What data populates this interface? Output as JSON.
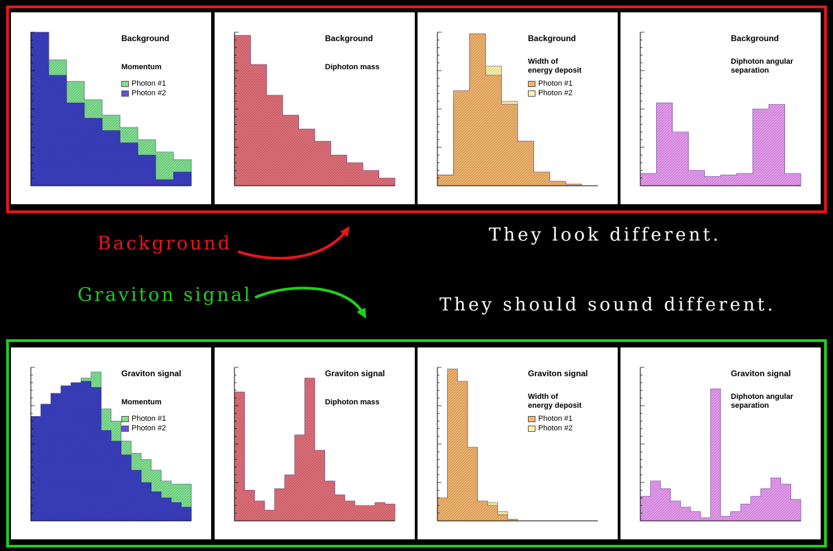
{
  "labels": {
    "background": "Background",
    "signal": "Graviton signal",
    "look_caption": "They look different.",
    "sound_caption": "They should sound different."
  },
  "colors": {
    "background_accent": "#e8141b",
    "signal_accent": "#1fce1f",
    "caption_text": "#ffffff"
  },
  "chart_data": [
    {
      "id": "bg-momentum",
      "type": "histogram",
      "title": "Background",
      "subtitle": "Momentum",
      "legend": [
        "Photon #1",
        "Photon #2"
      ],
      "series": [
        {
          "name": "Photon #1",
          "color": "#7fe08f",
          "values": [
            100,
            82,
            68,
            56,
            46,
            38,
            30,
            22,
            17
          ]
        },
        {
          "name": "Photon #2",
          "color": "#3a3fc0",
          "values": [
            100,
            72,
            54,
            44,
            36,
            28,
            20,
            4,
            9
          ]
        }
      ]
    },
    {
      "id": "bg-diphoton-mass",
      "type": "histogram",
      "title": "Background",
      "subtitle": "Diphoton mass",
      "legend": [],
      "series": [
        {
          "name": "",
          "color": "#e06f78",
          "values": [
            98,
            79,
            59,
            46,
            37,
            29,
            20,
            15,
            10,
            5
          ]
        }
      ]
    },
    {
      "id": "bg-width",
      "type": "histogram",
      "title": "Background",
      "subtitle": "Width of energy deposit",
      "legend": [
        "Photon #1",
        "Photon #2"
      ],
      "series": [
        {
          "name": "Photon #2",
          "color": "#fff3a8",
          "values": [
            7,
            55,
            99,
            78,
            55,
            29,
            8,
            2,
            1,
            0
          ]
        },
        {
          "name": "Photon #1",
          "color": "#f0b36c",
          "values": [
            7,
            62,
            99,
            72,
            53,
            29,
            9,
            3,
            1,
            0
          ]
        }
      ]
    },
    {
      "id": "bg-angular",
      "type": "histogram",
      "title": "Background",
      "subtitle": "Diphoton angular separation",
      "legend": [],
      "series": [
        {
          "name": "",
          "color": "#e79af0",
          "values": [
            8,
            54,
            35,
            10,
            6,
            7,
            8,
            50,
            53,
            8
          ]
        }
      ]
    },
    {
      "id": "sig-momentum",
      "type": "histogram",
      "title": "Graviton signal",
      "subtitle": "Momentum",
      "legend": [
        "Photon #1",
        "Photon #2"
      ],
      "series": [
        {
          "name": "Photon #1",
          "color": "#7fe08f",
          "values": [
            68,
            76,
            83,
            88,
            90,
            93,
            97,
            73,
            65,
            52,
            44,
            40,
            33,
            26,
            24,
            24
          ]
        },
        {
          "name": "Photon #2",
          "color": "#3a3fc0",
          "values": [
            68,
            76,
            83,
            88,
            90,
            91,
            87,
            59,
            52,
            43,
            33,
            25,
            19,
            15,
            12,
            9
          ]
        }
      ]
    },
    {
      "id": "sig-diphoton-mass",
      "type": "histogram",
      "title": "Graviton signal",
      "subtitle": "Diphoton mass",
      "legend": [],
      "series": [
        {
          "name": "",
          "color": "#e06f78",
          "values": [
            84,
            20,
            13,
            7,
            21,
            30,
            56,
            93,
            46,
            26,
            17,
            13,
            10,
            10,
            12,
            11
          ]
        }
      ]
    },
    {
      "id": "sig-width",
      "type": "histogram",
      "title": "Graviton signal",
      "subtitle": "Width of energy deposit",
      "legend": [
        "Photon #1",
        "Photon #2"
      ],
      "series": [
        {
          "name": "Photon #2",
          "color": "#fff3a8",
          "values": [
            13,
            95,
            88,
            47,
            12,
            12,
            6,
            1,
            0,
            0,
            0,
            0,
            0,
            0,
            0,
            0
          ]
        },
        {
          "name": "Photon #1",
          "color": "#f0b36c",
          "values": [
            15,
            99,
            91,
            48,
            13,
            10,
            4,
            1,
            0,
            0,
            0,
            0,
            0,
            0,
            0,
            0
          ]
        }
      ]
    },
    {
      "id": "sig-angular",
      "type": "histogram",
      "title": "Graviton signal",
      "subtitle": "Diphoton angular separation",
      "legend": [],
      "series": [
        {
          "name": "",
          "color": "#e79af0",
          "values": [
            16,
            26,
            21,
            13,
            9,
            6,
            2,
            86,
            3,
            6,
            11,
            16,
            21,
            28,
            24,
            14
          ]
        }
      ]
    }
  ]
}
